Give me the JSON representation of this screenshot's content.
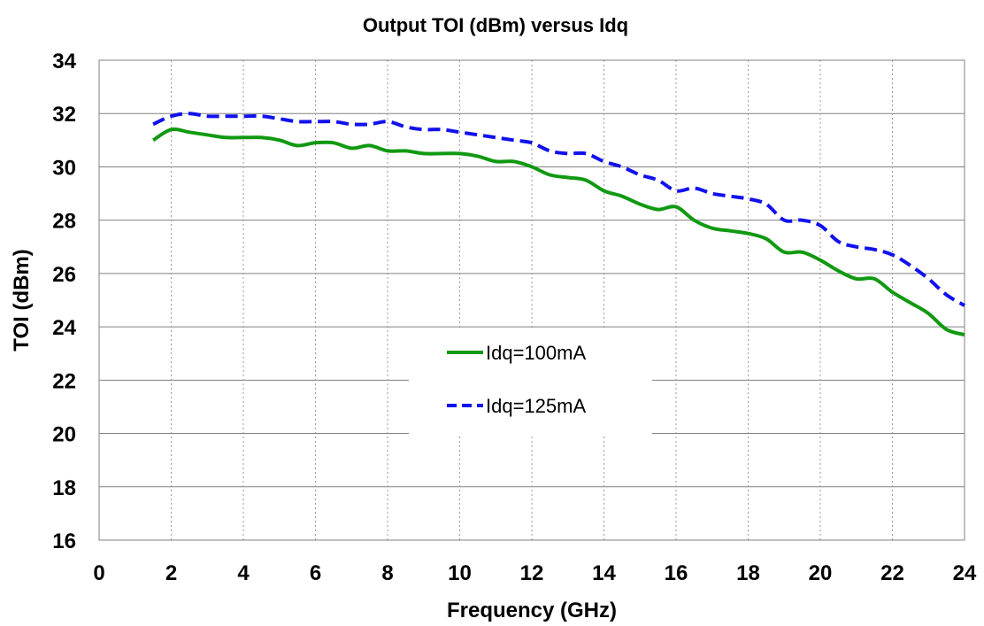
{
  "chart_data": {
    "type": "line",
    "title": "Output TOI (dBm) versus Idq",
    "xlabel": "Frequency (GHz)",
    "ylabel": "TOI (dBm)",
    "xlim": [
      0,
      24
    ],
    "ylim": [
      16,
      34
    ],
    "xticks": [
      0,
      2,
      4,
      6,
      8,
      10,
      12,
      14,
      16,
      18,
      20,
      22,
      24
    ],
    "yticks": [
      16,
      18,
      20,
      22,
      24,
      26,
      28,
      30,
      32,
      34
    ],
    "grid": {
      "x": "dotted-vertical",
      "y": "solid-horizontal"
    },
    "legend_position": "center",
    "series": [
      {
        "name": "Idq=100mA",
        "color": "#119911",
        "dash": "solid",
        "x": [
          1.5,
          2.0,
          2.5,
          3.0,
          3.5,
          4.0,
          4.5,
          5.0,
          5.5,
          6.0,
          6.5,
          7.0,
          7.5,
          8.0,
          8.5,
          9.0,
          9.5,
          10.0,
          10.5,
          11.0,
          11.5,
          12.0,
          12.5,
          13.0,
          13.5,
          14.0,
          14.5,
          15.0,
          15.5,
          16.0,
          16.5,
          17.0,
          17.5,
          18.0,
          18.5,
          19.0,
          19.5,
          20.0,
          20.5,
          21.0,
          21.5,
          22.0,
          22.5,
          23.0,
          23.5,
          24.0
        ],
        "y": [
          31.0,
          31.4,
          31.3,
          31.2,
          31.1,
          31.1,
          31.1,
          31.0,
          30.8,
          30.9,
          30.9,
          30.7,
          30.8,
          30.6,
          30.6,
          30.5,
          30.5,
          30.5,
          30.4,
          30.2,
          30.2,
          30.0,
          29.7,
          29.6,
          29.5,
          29.1,
          28.9,
          28.6,
          28.4,
          28.5,
          28.0,
          27.7,
          27.6,
          27.5,
          27.3,
          26.8,
          26.8,
          26.5,
          26.1,
          25.8,
          25.8,
          25.3,
          24.9,
          24.5,
          23.9,
          23.7
        ]
      },
      {
        "name": "Idq=125mA",
        "color": "#1111ee",
        "dash": "dashed",
        "x": [
          1.5,
          2.0,
          2.5,
          3.0,
          3.5,
          4.0,
          4.5,
          5.0,
          5.5,
          6.0,
          6.5,
          7.0,
          7.5,
          8.0,
          8.5,
          9.0,
          9.5,
          10.0,
          10.5,
          11.0,
          11.5,
          12.0,
          12.5,
          13.0,
          13.5,
          14.0,
          14.5,
          15.0,
          15.5,
          16.0,
          16.5,
          17.0,
          17.5,
          18.0,
          18.5,
          19.0,
          19.5,
          20.0,
          20.5,
          21.0,
          21.5,
          22.0,
          22.5,
          23.0,
          23.5,
          24.0
        ],
        "y": [
          31.6,
          31.9,
          32.0,
          31.9,
          31.9,
          31.9,
          31.9,
          31.8,
          31.7,
          31.7,
          31.7,
          31.6,
          31.6,
          31.7,
          31.5,
          31.4,
          31.4,
          31.3,
          31.2,
          31.1,
          31.0,
          30.9,
          30.6,
          30.5,
          30.5,
          30.2,
          30.0,
          29.7,
          29.5,
          29.1,
          29.2,
          29.0,
          28.9,
          28.8,
          28.6,
          28.0,
          28.0,
          27.8,
          27.2,
          27.0,
          26.9,
          26.7,
          26.3,
          25.8,
          25.2,
          24.8
        ]
      }
    ]
  }
}
